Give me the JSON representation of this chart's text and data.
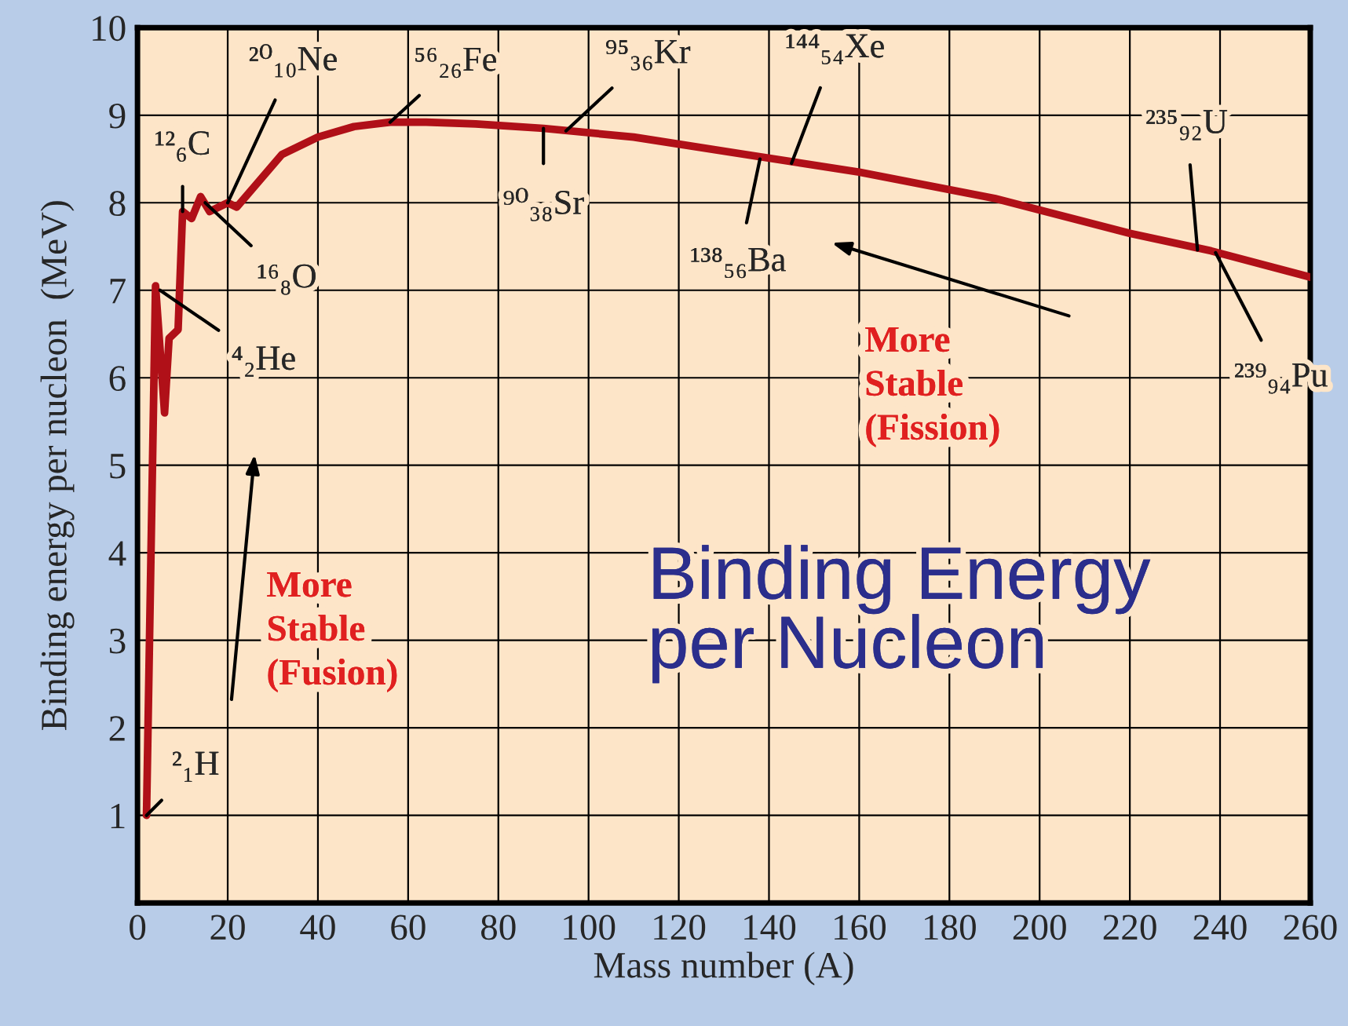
{
  "chart_data": {
    "type": "line",
    "title": "Binding Energy per Nucleon",
    "xlabel": "Mass number (A)",
    "ylabel": "Binding energy per nucleon  (MeV)",
    "x": [
      2,
      4,
      6,
      7,
      9,
      10,
      12,
      14,
      16,
      20,
      22,
      27,
      32,
      40,
      48,
      56,
      64,
      75,
      90,
      110,
      135,
      160,
      190,
      220,
      238,
      260
    ],
    "series": [
      {
        "color": "#b01018",
        "values": [
          1.0,
          7.05,
          5.6,
          6.45,
          6.55,
          7.9,
          7.82,
          8.07,
          7.9,
          8.0,
          7.95,
          8.25,
          8.55,
          8.75,
          8.87,
          8.92,
          8.92,
          8.9,
          8.85,
          8.75,
          8.55,
          8.35,
          8.05,
          7.65,
          7.45,
          7.15
        ]
      }
    ],
    "xlim": [
      0,
      260
    ],
    "ylim": [
      0,
      10
    ],
    "xticks": [
      0,
      20,
      40,
      60,
      80,
      100,
      120,
      140,
      160,
      180,
      200,
      220,
      240,
      260
    ],
    "yticks": [
      {
        "value": 0,
        "label": null
      },
      1,
      2,
      3,
      4,
      5,
      6,
      7,
      8,
      9,
      10
    ],
    "grid": true,
    "marker": "none",
    "line_style": "solid",
    "annotations": [
      {
        "text": "²₁H",
        "x": 2,
        "y": 1.0
      },
      {
        "text": "⁴₂He",
        "x": 5,
        "y": 7.0
      },
      {
        "text": "¹²₆C",
        "x": 10,
        "y": 7.9
      },
      {
        "text": "¹⁶₈O",
        "x": 15,
        "y": 8.0
      },
      {
        "text": "²⁰₁₀Ne",
        "x": 20,
        "y": 8.0
      },
      {
        "text": "⁵⁶₂₆Fe",
        "x": 56,
        "y": 8.92
      },
      {
        "text": "⁹⁰₃₈Sr",
        "x": 90,
        "y": 8.85
      },
      {
        "text": "⁹⁵₃₆Kr",
        "x": 95,
        "y": 8.82
      },
      {
        "text": "¹³⁸₅₆Ba",
        "x": 138,
        "y": 8.5
      },
      {
        "text": "¹⁴⁴₅₄Xe",
        "x": 145,
        "y": 8.45
      },
      {
        "text": "²³⁵₉₂U",
        "x": 235,
        "y": 7.46
      },
      {
        "text": "²³⁹₉₄Pu",
        "x": 239,
        "y": 7.43
      },
      "More\nStable\n(Fusion)",
      "More\nStable\n(Fission)"
    ]
  }
}
